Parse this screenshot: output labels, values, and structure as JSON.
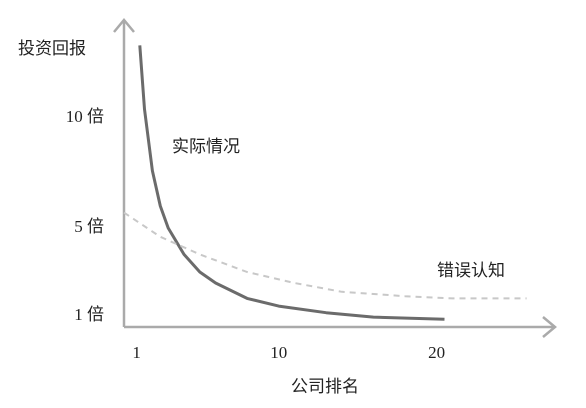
{
  "chart_data": {
    "type": "line",
    "y_label": "投资回报",
    "x_label": "公司排名",
    "xlim": [
      0.2,
      27.5
    ],
    "ylim": [
      0.5,
      14.5
    ],
    "xticks": [
      1,
      10,
      20
    ],
    "yticks": [
      {
        "value": 1,
        "label": "1 倍"
      },
      {
        "value": 5,
        "label": "5 倍"
      },
      {
        "value": 10,
        "label": "10 倍"
      }
    ],
    "grid": false,
    "series": [
      {
        "name": "实际情况",
        "color": "#6b6b6b",
        "line_style": "solid",
        "x": [
          1.2,
          1.5,
          2,
          2.5,
          3,
          4,
          5,
          6,
          8,
          10,
          13,
          16,
          20.5
        ],
        "values": [
          13.3,
          10.4,
          7.6,
          6.0,
          5.0,
          3.8,
          3.0,
          2.5,
          1.8,
          1.45,
          1.15,
          0.95,
          0.85
        ]
      },
      {
        "name": "错误认知",
        "color": "#c8c8c8",
        "line_style": "dashed",
        "x": [
          0.2,
          2.5,
          5,
          8,
          11,
          14,
          18,
          21,
          25.7
        ],
        "values": [
          5.7,
          4.6,
          3.8,
          3.0,
          2.5,
          2.1,
          1.9,
          1.8,
          1.8
        ]
      }
    ]
  }
}
